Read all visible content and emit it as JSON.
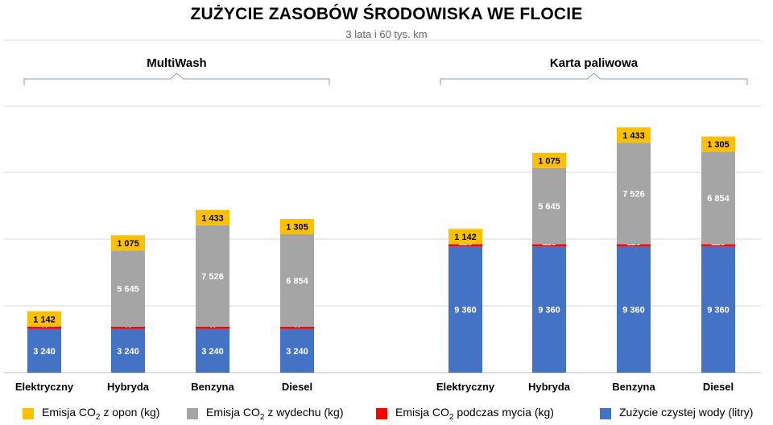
{
  "header": {
    "title": "ZUŻYCIE ZASOBÓW ŚRODOWISKA WE FLOCIE",
    "subtitle": "3 lata i 60 tys. km"
  },
  "chart_data": {
    "type": "bar",
    "stacked": true,
    "title": "ZUŻYCIE ZASOBÓW ŚRODOWISKA WE FLOCIE",
    "subtitle": "3 lata i 60 tys. km",
    "grid": true,
    "legend_position": "bottom",
    "groups": [
      {
        "label": "MultiWash",
        "categories": [
          "Elektryczny",
          "Hybryda",
          "Benzyna",
          "Diesel"
        ],
        "series": [
          {
            "name": "Zużycie czystej wody (litry)",
            "color": "#4472C4",
            "values": [
              3240,
              3240,
              3240,
              3240
            ],
            "labels": [
              "3 240",
              "3 240",
              "3 240",
              "3 240"
            ]
          },
          {
            "name": "Emisja CO2 podczas mycia (kg)",
            "color": "#FF0000",
            "values": [
              47,
              47,
              47,
              47
            ],
            "labels": [
              "47",
              "47",
              "47",
              "47"
            ]
          },
          {
            "name": "Emisja CO2 z wydechu (kg)",
            "color": "#A5A5A5",
            "values": [
              0,
              5645,
              7526,
              6854
            ],
            "labels": [
              "",
              "5 645",
              "7 526",
              "6 854"
            ]
          },
          {
            "name": "Emisja CO2 z opon (kg)",
            "color": "#FFC000",
            "values": [
              1142,
              1075,
              1433,
              1305
            ],
            "labels": [
              "1 142",
              "1 075",
              "1 433",
              "1 305"
            ]
          }
        ]
      },
      {
        "label": "Karta paliwowa",
        "categories": [
          "Elektryczny",
          "Hybryda",
          "Benzyna",
          "Diesel"
        ],
        "series": [
          {
            "name": "Zużycie czystej wody (litry)",
            "color": "#4472C4",
            "values": [
              9360,
              9360,
              9360,
              9360
            ],
            "labels": [
              "9 360",
              "9 360",
              "9 360",
              "9 360"
            ]
          },
          {
            "name": "Emisja CO2 podczas mycia (kg)",
            "color": "#FF0000",
            "values": [
              115,
              115,
              115,
              115
            ],
            "labels": [
              "115",
              "115",
              "115",
              "115"
            ]
          },
          {
            "name": "Emisja CO2 z wydechu (kg)",
            "color": "#A5A5A5",
            "values": [
              0,
              5645,
              7526,
              6854
            ],
            "labels": [
              "",
              "5 645",
              "7 526",
              "6 854"
            ]
          },
          {
            "name": "Emisja CO2 z opon (kg)",
            "color": "#FFC000",
            "values": [
              1142,
              1075,
              1433,
              1305
            ],
            "labels": [
              "1 142",
              "1 075",
              "1 433",
              "1 305"
            ]
          }
        ]
      }
    ],
    "ylim": [
      0,
      20000
    ],
    "legend": [
      {
        "prefix": "Emisja CO",
        "sub": "2",
        "suffix": " z opon (kg)",
        "color": "#FFC000"
      },
      {
        "prefix": "Emisja CO",
        "sub": "2",
        "suffix": " z wydechu (kg)",
        "color": "#A5A5A5"
      },
      {
        "prefix": "Emisja CO",
        "sub": "2",
        "suffix": " podczas mycia (kg)",
        "color": "#FF0000"
      },
      {
        "prefix": "Zużycie czystej wody (litry)",
        "sub": "",
        "suffix": "",
        "color": "#4472C4"
      }
    ]
  }
}
